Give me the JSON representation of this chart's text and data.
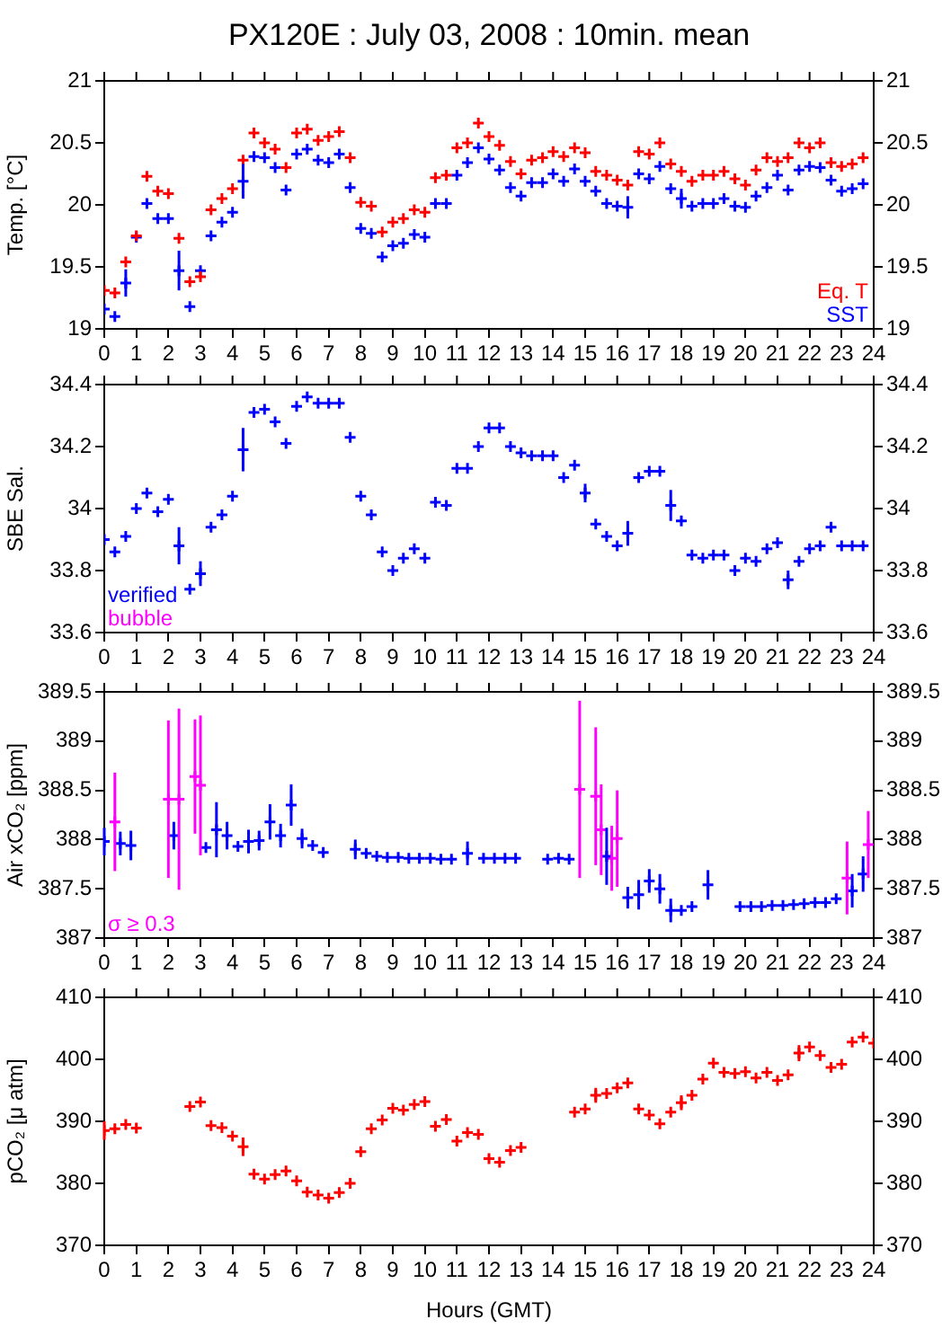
{
  "chart_data": [
    {
      "type": "scatter",
      "title": "PX120E : July 03, 2008 : 10min. mean",
      "ylabel": "Temp. [°C]",
      "marker": "cross",
      "legend": "bottom right",
      "x": [
        0,
        0.33,
        0.67,
        1,
        1.33,
        1.67,
        2,
        2.33,
        2.67,
        3,
        3.33,
        3.67,
        4,
        4.33,
        4.67,
        5,
        5.33,
        5.67,
        6,
        6.33,
        6.67,
        7,
        7.33,
        7.67,
        8,
        8.33,
        8.67,
        9,
        9.33,
        9.67,
        10,
        10.33,
        10.67,
        11,
        11.33,
        11.67,
        12,
        12.33,
        12.67,
        13,
        13.33,
        13.67,
        14,
        14.33,
        14.67,
        15,
        15.33,
        15.67,
        16,
        16.33,
        16.67,
        17,
        17.33,
        17.67,
        18,
        18.33,
        18.67,
        19,
        19.33,
        19.67,
        20,
        20.33,
        20.67,
        21,
        21.33,
        21.67,
        22,
        22.33,
        22.67,
        23,
        23.33,
        23.67
      ],
      "series": [
        {
          "name": "Eq. T",
          "color": "#ff0000",
          "values": [
            19.31,
            19.29,
            19.54,
            19.75,
            20.23,
            20.11,
            20.09,
            19.73,
            19.38,
            19.42,
            19.96,
            20.05,
            20.13,
            20.36,
            20.58,
            20.5,
            20.45,
            20.3,
            20.58,
            20.61,
            20.52,
            20.55,
            20.59,
            20.38,
            20.02,
            19.99,
            19.78,
            19.86,
            19.89,
            19.96,
            19.94,
            20.22,
            20.24,
            20.46,
            20.5,
            20.66,
            20.55,
            20.48,
            20.35,
            20.25,
            20.36,
            20.38,
            20.43,
            20.39,
            20.46,
            20.42,
            20.27,
            20.24,
            20.2,
            20.16,
            20.43,
            20.41,
            20.5,
            20.33,
            20.27,
            20.19,
            20.24,
            20.24,
            20.27,
            20.21,
            20.16,
            20.28,
            20.38,
            20.35,
            20.38,
            20.5,
            20.46,
            20.5,
            20.34,
            20.31,
            20.33,
            20.38
          ]
        },
        {
          "name": "SST",
          "color": "#0000ff",
          "values": [
            19.16,
            19.1,
            19.37,
            19.74,
            20.01,
            19.89,
            19.89,
            19.47,
            19.18,
            19.47,
            19.75,
            19.86,
            19.94,
            20.19,
            20.39,
            20.38,
            20.3,
            20.12,
            20.41,
            20.45,
            20.36,
            20.34,
            20.41,
            20.14,
            19.81,
            19.77,
            19.58,
            19.67,
            19.69,
            19.76,
            19.74,
            20.01,
            20.01,
            20.24,
            20.34,
            20.46,
            20.37,
            20.28,
            20.14,
            20.07,
            20.18,
            20.18,
            20.25,
            20.19,
            20.29,
            20.19,
            20.11,
            20.01,
            19.99,
            19.98,
            20.25,
            20.21,
            20.31,
            20.13,
            20.05,
            19.99,
            20.01,
            20.01,
            20.05,
            19.99,
            19.98,
            20.07,
            20.14,
            20.24,
            20.12,
            20.28,
            20.31,
            20.3,
            20.2,
            20.11,
            20.13,
            20.17
          ],
          "errors": [
            null,
            null,
            0.11,
            null,
            null,
            null,
            null,
            0.16,
            null,
            null,
            null,
            null,
            null,
            0.14,
            null,
            null,
            null,
            null,
            null,
            null,
            null,
            null,
            null,
            null,
            null,
            null,
            null,
            null,
            null,
            null,
            null,
            null,
            null,
            null,
            null,
            null,
            null,
            null,
            null,
            null,
            null,
            null,
            null,
            null,
            null,
            null,
            null,
            null,
            null,
            0.09,
            null,
            null,
            null,
            null,
            0.08,
            null,
            null,
            null,
            null,
            null,
            null,
            null,
            null,
            null,
            null,
            null,
            null,
            null,
            null,
            null,
            null,
            null
          ]
        }
      ],
      "xlim": [
        0,
        24
      ],
      "xticks": [
        0,
        1,
        2,
        3,
        4,
        5,
        6,
        7,
        8,
        9,
        10,
        11,
        12,
        13,
        14,
        15,
        16,
        17,
        18,
        19,
        20,
        21,
        22,
        23,
        24
      ],
      "ylim": [
        19,
        21
      ],
      "yticks": [
        19,
        19.5,
        20,
        20.5,
        21
      ],
      "y2lim": [
        19,
        21
      ],
      "y2ticks": [
        19,
        19.5,
        20,
        20.5,
        21
      ]
    },
    {
      "type": "scatter",
      "ylabel": "SBE Sal.",
      "marker": "cross",
      "legend": "bottom left",
      "x": [
        0,
        0.33,
        0.67,
        1,
        1.33,
        1.67,
        2,
        2.33,
        2.67,
        3,
        3.33,
        3.67,
        4,
        4.33,
        4.67,
        5,
        5.33,
        5.67,
        6,
        6.33,
        6.67,
        7,
        7.33,
        7.67,
        8,
        8.33,
        8.67,
        9,
        9.33,
        9.67,
        10,
        10.33,
        10.67,
        11,
        11.33,
        11.67,
        12,
        12.33,
        12.67,
        13,
        13.33,
        13.67,
        14,
        14.33,
        14.67,
        15,
        15.33,
        15.67,
        16,
        16.33,
        16.67,
        17,
        17.33,
        17.67,
        18,
        18.33,
        18.67,
        19,
        19.33,
        19.67,
        20,
        20.33,
        20.67,
        21,
        21.33,
        21.67,
        22,
        22.33,
        22.67,
        23,
        23.33,
        23.67
      ],
      "series": [
        {
          "name": "verified",
          "color": "#0000ff",
          "values": [
            33.9,
            33.86,
            33.91,
            34.0,
            34.05,
            33.99,
            34.03,
            33.88,
            33.74,
            33.79,
            33.94,
            33.98,
            34.04,
            34.19,
            34.31,
            34.32,
            34.28,
            34.21,
            34.33,
            34.36,
            34.34,
            34.34,
            34.34,
            34.23,
            34.04,
            33.98,
            33.86,
            33.8,
            33.84,
            33.87,
            33.84,
            34.02,
            34.01,
            34.13,
            34.13,
            34.2,
            34.26,
            34.26,
            34.2,
            34.18,
            34.17,
            34.17,
            34.17,
            34.1,
            34.14,
            34.05,
            33.95,
            33.91,
            33.88,
            33.92,
            34.1,
            34.12,
            34.12,
            34.01,
            33.96,
            33.85,
            33.84,
            33.85,
            33.85,
            33.8,
            33.84,
            33.83,
            33.87,
            33.89,
            33.77,
            33.83,
            33.87,
            33.88,
            33.94,
            33.88,
            33.88,
            33.88
          ],
          "errors": [
            null,
            null,
            null,
            null,
            null,
            null,
            null,
            0.06,
            null,
            0.04,
            null,
            null,
            null,
            0.07,
            null,
            null,
            null,
            null,
            null,
            null,
            null,
            null,
            null,
            null,
            null,
            null,
            null,
            null,
            null,
            null,
            null,
            null,
            null,
            null,
            null,
            null,
            null,
            null,
            null,
            null,
            null,
            null,
            null,
            null,
            null,
            0.03,
            null,
            null,
            null,
            0.04,
            null,
            null,
            null,
            0.05,
            null,
            null,
            null,
            null,
            null,
            null,
            null,
            null,
            null,
            null,
            0.03,
            null,
            null,
            null,
            null,
            null,
            null,
            null
          ]
        },
        {
          "name": "bubble",
          "color": "#ff00ff",
          "values": [
            null,
            null,
            null,
            null,
            null,
            null,
            null,
            null,
            null,
            null,
            null,
            null,
            null,
            null,
            null,
            null,
            null,
            null,
            null,
            null,
            null,
            null,
            null,
            null,
            null,
            null,
            null,
            null,
            null,
            null,
            null,
            null,
            null,
            null,
            null,
            null,
            null,
            null,
            null,
            null,
            null,
            null,
            null,
            null,
            null,
            null,
            null,
            null,
            null,
            null,
            null,
            null,
            null,
            null,
            null,
            null,
            null,
            null,
            null,
            null,
            null,
            null,
            null,
            null,
            null,
            null,
            null,
            null,
            null,
            null,
            null,
            null
          ]
        }
      ],
      "xlim": [
        0,
        24
      ],
      "xticks": [
        0,
        1,
        2,
        3,
        4,
        5,
        6,
        7,
        8,
        9,
        10,
        11,
        12,
        13,
        14,
        15,
        16,
        17,
        18,
        19,
        20,
        21,
        22,
        23,
        24
      ],
      "ylim": [
        33.6,
        34.4
      ],
      "yticks": [
        33.6,
        33.8,
        34,
        34.2,
        34.4
      ],
      "y2lim": [
        33.6,
        34.4
      ],
      "y2ticks": [
        33.6,
        33.8,
        34,
        34.2,
        34.4
      ]
    },
    {
      "type": "scatter",
      "ylabel": "Air xCO₂ [ppm]",
      "marker": "cross",
      "legend": "bottom left",
      "series": [
        {
          "color": "#0000ff",
          "x": [
            0,
            0.5,
            0.83,
            2.17,
            3.17,
            3.5,
            3.83,
            4.17,
            4.5,
            4.83,
            5.17,
            5.5,
            5.83,
            6.17,
            6.5,
            6.83,
            7.83,
            8.17,
            8.5,
            8.83,
            9.17,
            9.5,
            9.83,
            10.17,
            10.5,
            10.83,
            11.33,
            11.83,
            12.17,
            12.5,
            12.83,
            13.83,
            14.17,
            14.5,
            15.67,
            16.33,
            16.67,
            17,
            17.33,
            17.67,
            18,
            18.33,
            18.83,
            19.83,
            20.17,
            20.5,
            20.83,
            21.17,
            21.5,
            21.83,
            22.17,
            22.5,
            22.83,
            23.33,
            23.67
          ],
          "values": [
            387.98,
            387.96,
            387.94,
            388.04,
            387.92,
            388.1,
            388.04,
            387.93,
            387.98,
            387.99,
            388.18,
            388.04,
            388.35,
            388.01,
            387.94,
            387.87,
            387.9,
            387.86,
            387.83,
            387.82,
            387.82,
            387.81,
            387.81,
            387.81,
            387.8,
            387.8,
            387.86,
            387.81,
            387.81,
            387.81,
            387.81,
            387.8,
            387.81,
            387.8,
            387.83,
            387.41,
            387.44,
            387.58,
            387.5,
            387.28,
            387.28,
            387.32,
            387.54,
            387.32,
            387.32,
            387.32,
            387.33,
            387.33,
            387.34,
            387.35,
            387.36,
            387.36,
            387.4,
            387.48,
            387.65
          ],
          "errors": [
            0.14,
            0.12,
            0.15,
            0.14,
            null,
            0.28,
            0.14,
            null,
            0.12,
            0.1,
            0.18,
            0.12,
            0.21,
            0.1,
            null,
            null,
            0.1,
            null,
            null,
            null,
            null,
            null,
            null,
            null,
            null,
            null,
            0.12,
            null,
            null,
            null,
            null,
            null,
            null,
            null,
            0.29,
            0.11,
            0.15,
            0.12,
            0.15,
            0.12,
            null,
            null,
            0.15,
            null,
            null,
            null,
            null,
            null,
            null,
            null,
            null,
            null,
            null,
            0.17,
            0.18
          ]
        },
        {
          "name": "σ ≥ 0.3",
          "color": "#ff00ff",
          "x": [
            0.33,
            2,
            2.33,
            2.83,
            3,
            14.83,
            15.33,
            15.5,
            15.83,
            16,
            23.17,
            23.83
          ],
          "values": [
            388.18,
            388.41,
            388.41,
            388.64,
            388.55,
            388.51,
            388.44,
            388.1,
            387.81,
            388.01,
            387.61,
            387.95
          ],
          "errors": [
            0.5,
            0.8,
            0.92,
            0.58,
            0.71,
            0.9,
            0.7,
            0.46,
            0.33,
            0.49,
            0.37,
            0.34
          ]
        }
      ],
      "xlim": [
        0,
        24
      ],
      "xticks": [
        0,
        1,
        2,
        3,
        4,
        5,
        6,
        7,
        8,
        9,
        10,
        11,
        12,
        13,
        14,
        15,
        16,
        17,
        18,
        19,
        20,
        21,
        22,
        23,
        24
      ],
      "ylim": [
        387,
        389.5
      ],
      "yticks": [
        387,
        387.5,
        388,
        388.5,
        389,
        389.5
      ],
      "y2lim": [
        387,
        389.5
      ],
      "y2ticks": [
        387,
        387.5,
        388,
        388.5,
        389,
        389.5
      ]
    },
    {
      "type": "scatter",
      "ylabel": "pCO₂ [μ atm]",
      "xlabel": "Hours (GMT)",
      "marker": "cross",
      "series": [
        {
          "color": "#ff0000",
          "x": [
            0,
            0.33,
            0.67,
            1,
            2.67,
            3,
            3.33,
            3.67,
            4,
            4.33,
            4.67,
            5,
            5.33,
            5.67,
            6,
            6.33,
            6.67,
            7,
            7.33,
            7.67,
            8,
            8.33,
            8.67,
            9,
            9.33,
            9.67,
            10,
            10.33,
            10.67,
            11,
            11.33,
            11.67,
            12,
            12.33,
            12.67,
            13,
            14.67,
            15,
            15.33,
            15.67,
            16,
            16.33,
            16.67,
            17,
            17.33,
            17.67,
            18,
            18.33,
            18.67,
            19,
            19.33,
            19.67,
            20,
            20.33,
            20.67,
            21,
            21.33,
            21.67,
            22,
            22.33,
            22.67,
            23,
            23.33,
            23.67,
            24
          ],
          "values": [
            388.5,
            388.8,
            389.5,
            388.9,
            392.4,
            393.1,
            389.3,
            389.0,
            387.6,
            385.9,
            381.5,
            380.7,
            381.4,
            382.0,
            380.4,
            378.6,
            378.1,
            377.6,
            378.5,
            380.0,
            385.1,
            388.8,
            390.2,
            392.1,
            391.8,
            392.7,
            393.2,
            389.2,
            390.3,
            386.8,
            388.2,
            387.9,
            384.0,
            383.4,
            385.3,
            385.8,
            391.5,
            392.0,
            394.2,
            394.5,
            395.4,
            396.2,
            392.0,
            391.0,
            389.6,
            391.5,
            393.0,
            394.2,
            396.8,
            399.4,
            397.9,
            397.7,
            398.0,
            397.0,
            397.9,
            396.6,
            397.5,
            401.0,
            402.0,
            400.6,
            398.7,
            399.2,
            402.8,
            403.6,
            402.6
          ],
          "errors": [
            1.5,
            null,
            null,
            null,
            null,
            null,
            null,
            null,
            null,
            1.5,
            null,
            null,
            null,
            null,
            null,
            null,
            null,
            null,
            null,
            null,
            null,
            null,
            null,
            null,
            null,
            null,
            null,
            null,
            null,
            null,
            null,
            null,
            null,
            null,
            null,
            null,
            null,
            null,
            1.2,
            null,
            null,
            null,
            null,
            null,
            null,
            null,
            1.2,
            null,
            null,
            null,
            null,
            null,
            null,
            null,
            null,
            null,
            null,
            1.3,
            null,
            null,
            null,
            null,
            null,
            null,
            null
          ]
        }
      ],
      "xlim": [
        0,
        24
      ],
      "xticks": [
        0,
        1,
        2,
        3,
        4,
        5,
        6,
        7,
        8,
        9,
        10,
        11,
        12,
        13,
        14,
        15,
        16,
        17,
        18,
        19,
        20,
        21,
        22,
        23,
        24
      ],
      "ylim": [
        370,
        410
      ],
      "yticks": [
        370,
        380,
        390,
        400,
        410
      ],
      "y2lim": [
        370,
        410
      ],
      "y2ticks": [
        370,
        380,
        390,
        400,
        410
      ]
    }
  ]
}
